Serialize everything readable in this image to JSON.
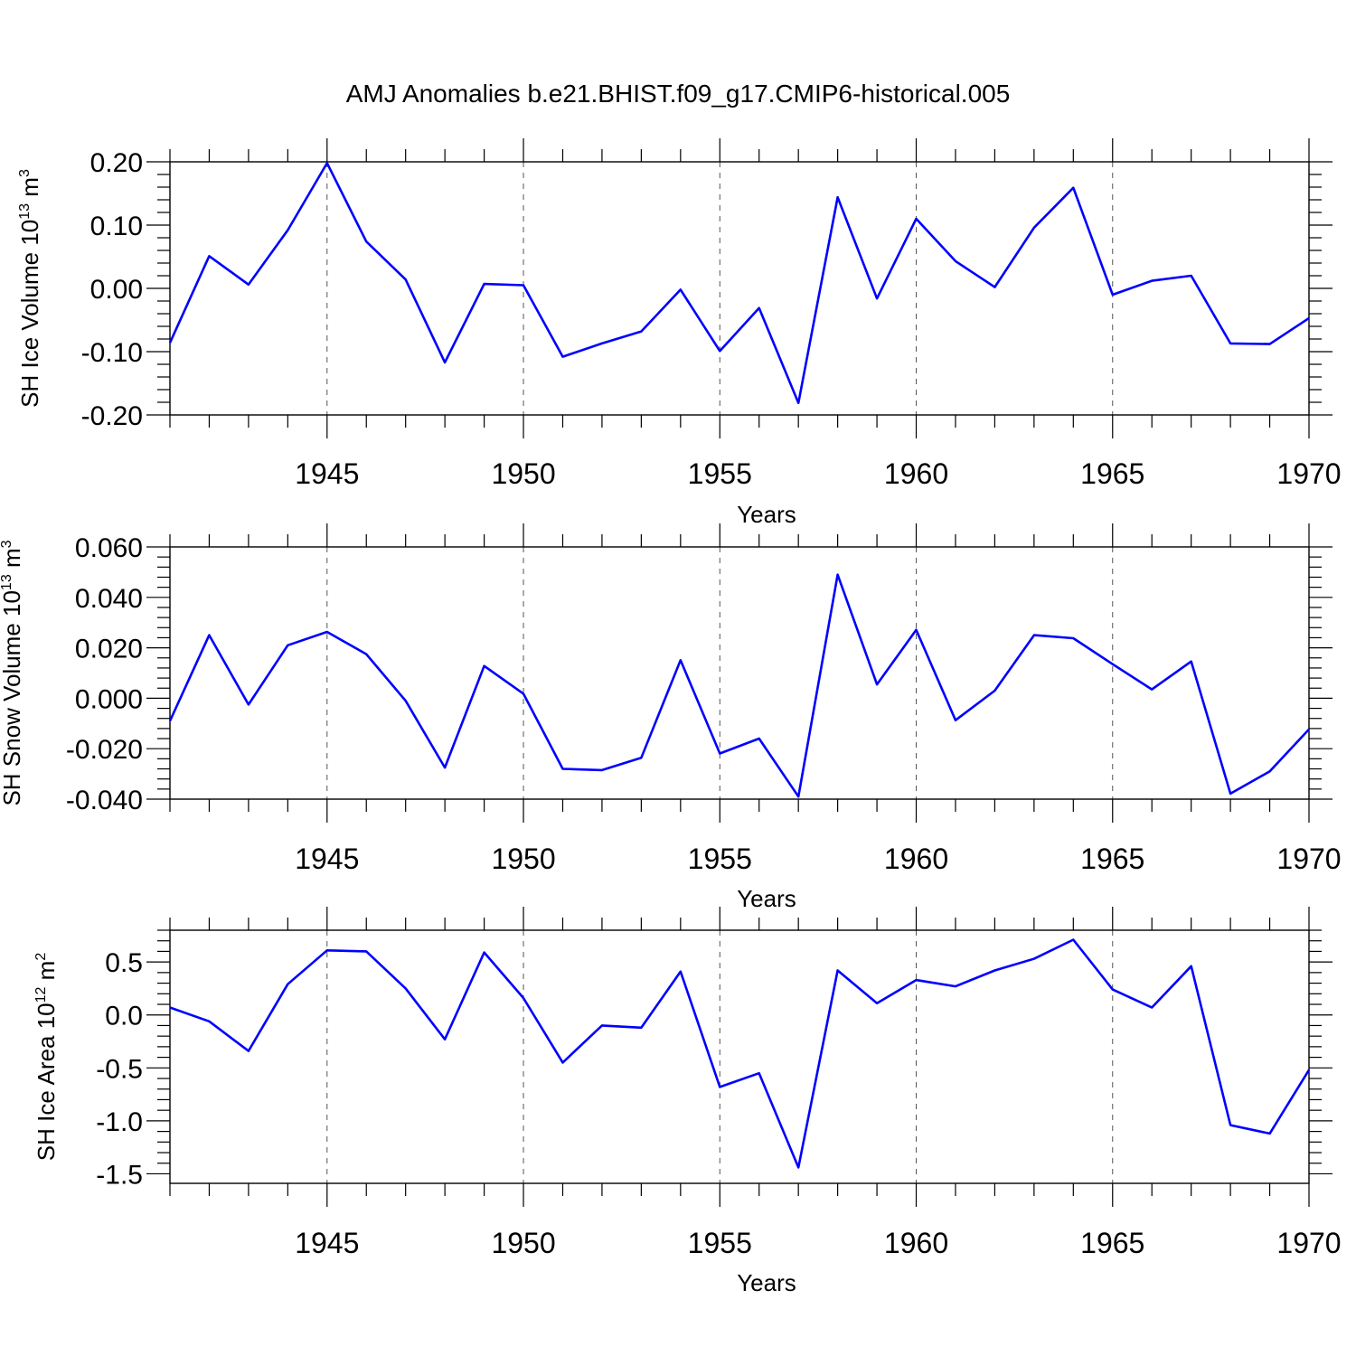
{
  "title": "AMJ Anomalies b.e21.BHIST.f09_g17.CMIP6-historical.005",
  "chart_data": [
    {
      "type": "line",
      "xlabel": "Years",
      "ylabel": "SH Ice Volume 10",
      "ylabel_sup": "13",
      "ylabel_unit": " m",
      "ylabel_unit_sup": "3",
      "xlim": [
        1941,
        1970
      ],
      "ylim": [
        -0.2,
        0.2
      ],
      "yticks": [
        "0.20",
        "0.10",
        "0.00",
        "-0.10",
        "-0.20"
      ],
      "ytick_values": [
        0.2,
        0.1,
        0.0,
        -0.1,
        -0.2
      ],
      "xticks": [
        "1945",
        "1950",
        "1955",
        "1960",
        "1965",
        "1970"
      ],
      "xtick_values": [
        1945,
        1950,
        1955,
        1960,
        1965,
        1970
      ],
      "x": [
        1941,
        1942,
        1943,
        1944,
        1945,
        1946,
        1947,
        1948,
        1949,
        1950,
        1951,
        1952,
        1953,
        1954,
        1955,
        1956,
        1957,
        1958,
        1959,
        1960,
        1961,
        1962,
        1963,
        1964,
        1965,
        1966,
        1967,
        1968,
        1969,
        1970
      ],
      "series": [
        {
          "name": "SH Ice Volume",
          "color": "#0000ff",
          "values": [
            -0.086,
            0.051,
            0.006,
            0.092,
            0.198,
            0.074,
            0.014,
            -0.117,
            0.007,
            0.005,
            -0.108,
            -0.087,
            -0.068,
            -0.002,
            -0.099,
            -0.031,
            -0.181,
            0.144,
            -0.016,
            0.11,
            0.043,
            0.002,
            0.096,
            0.159,
            -0.01,
            0.012,
            0.02,
            -0.087,
            -0.088,
            -0.047
          ]
        }
      ]
    },
    {
      "type": "line",
      "xlabel": "Years",
      "ylabel": "SH Snow Volume 10",
      "ylabel_sup": "13",
      "ylabel_unit": " m",
      "ylabel_unit_sup": "3",
      "xlim": [
        1941,
        1970
      ],
      "ylim": [
        -0.04,
        0.06
      ],
      "yticks": [
        "0.060",
        "0.040",
        "0.020",
        "0.000",
        "-0.020",
        "-0.040"
      ],
      "ytick_values": [
        0.06,
        0.04,
        0.02,
        0.0,
        -0.02,
        -0.04
      ],
      "xticks": [
        "1945",
        "1950",
        "1955",
        "1960",
        "1965",
        "1970"
      ],
      "xtick_values": [
        1945,
        1950,
        1955,
        1960,
        1965,
        1970
      ],
      "x": [
        1941,
        1942,
        1943,
        1944,
        1945,
        1946,
        1947,
        1948,
        1949,
        1950,
        1951,
        1952,
        1953,
        1954,
        1955,
        1956,
        1957,
        1958,
        1959,
        1960,
        1961,
        1962,
        1963,
        1964,
        1965,
        1966,
        1967,
        1968,
        1969,
        1970
      ],
      "series": [
        {
          "name": "SH Snow Volume",
          "color": "#0000ff",
          "values": [
            -0.009,
            0.025,
            -0.0025,
            0.021,
            0.0263,
            0.0175,
            -0.001,
            -0.0275,
            0.0128,
            0.0018,
            -0.028,
            -0.0285,
            -0.0236,
            0.0151,
            -0.0219,
            -0.016,
            -0.039,
            0.049,
            0.0055,
            0.0271,
            -0.0087,
            0.003,
            0.025,
            0.0238,
            0.0135,
            0.0035,
            0.0146,
            -0.0378,
            -0.029,
            -0.0123
          ]
        }
      ]
    },
    {
      "type": "line",
      "xlabel": "Years",
      "ylabel": "SH Ice Area 10",
      "ylabel_sup": "12",
      "ylabel_unit": " m",
      "ylabel_unit_sup": "2",
      "xlim": [
        1941,
        1970
      ],
      "ylim": [
        -1.59,
        0.8
      ],
      "yticks": [
        "0.5",
        "0.0",
        "-0.5",
        "-1.0",
        "-1.5"
      ],
      "ytick_values": [
        0.5,
        0.0,
        -0.5,
        -1.0,
        -1.5
      ],
      "xticks": [
        "1945",
        "1950",
        "1955",
        "1960",
        "1965",
        "1970"
      ],
      "xtick_values": [
        1945,
        1950,
        1955,
        1960,
        1965,
        1970
      ],
      "x": [
        1941,
        1942,
        1943,
        1944,
        1945,
        1946,
        1947,
        1948,
        1949,
        1950,
        1951,
        1952,
        1953,
        1954,
        1955,
        1956,
        1957,
        1958,
        1959,
        1960,
        1961,
        1962,
        1963,
        1964,
        1965,
        1966,
        1967,
        1968,
        1969,
        1970
      ],
      "series": [
        {
          "name": "SH Ice Area",
          "color": "#0000ff",
          "values": [
            0.07,
            -0.06,
            -0.34,
            0.29,
            0.61,
            0.6,
            0.25,
            -0.23,
            0.59,
            0.16,
            -0.45,
            -0.1,
            -0.12,
            0.41,
            -0.68,
            -0.55,
            -1.44,
            0.42,
            0.11,
            0.33,
            0.27,
            0.42,
            0.53,
            0.71,
            0.24,
            0.07,
            0.46,
            -1.04,
            -1.12,
            -0.52
          ]
        }
      ]
    }
  ]
}
